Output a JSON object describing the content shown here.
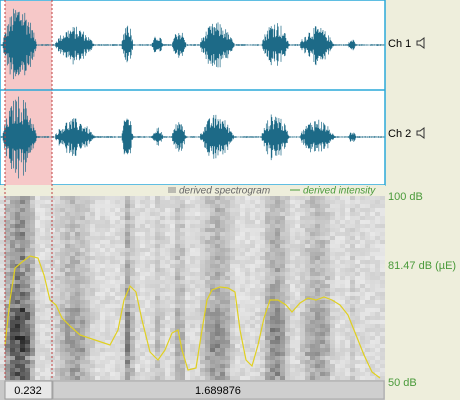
{
  "channels": [
    {
      "label": "Ch 1"
    },
    {
      "label": "Ch 2"
    }
  ],
  "legend": {
    "spectrogram": "derived spectrogram",
    "intensity": "derived intensity"
  },
  "intensity_axis": {
    "top": "100 dB",
    "cursor": "81.47 dB (µE)",
    "bottom": "50 dB"
  },
  "time_bar": {
    "selection": "0.232",
    "total": "1.689876"
  }
}
